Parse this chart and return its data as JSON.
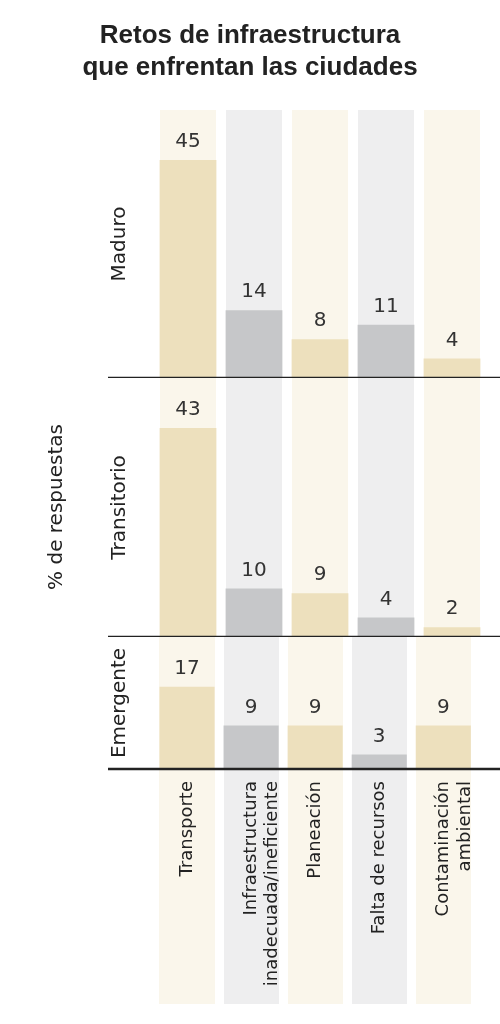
{
  "chart_data": [
    {
      "type": "bar",
      "title": "Retos de infraestructura que enfrentan las ciudades",
      "ylabel": "Maduro",
      "values": [
        45,
        14,
        8,
        11,
        4
      ],
      "colors": [
        "#ede0bd",
        "#c6c7c9",
        "#ede0bd",
        "#c6c7c9",
        "#ede0bd"
      ],
      "data_labels": true,
      "tick_labels": false,
      "legend": false,
      "grid": false
    },
    {
      "type": "bar",
      "ylabel": "Transitorio",
      "annotations": [
        "% de respuestas"
      ],
      "values": [
        43,
        10,
        9,
        4,
        2
      ],
      "colors": [
        "#ede0bd",
        "#c6c7c9",
        "#ede0bd",
        "#c6c7c9",
        "#ede0bd"
      ],
      "data_labels": true,
      "tick_labels": false,
      "legend": false,
      "grid": false
    },
    {
      "type": "bar",
      "ylabel": "Emergente",
      "categories": [
        "Transporte",
        "Infraestructura inadecuada/ineficiente",
        "Planeación",
        "Falta de recursos",
        "Contaminación ambiental"
      ],
      "values": [
        17,
        9,
        9,
        3,
        9
      ],
      "colors": [
        "#ede0bd",
        "#c6c7c9",
        "#ede0bd",
        "#c6c7c9",
        "#ede0bd"
      ],
      "data_labels": true,
      "tick_labels": "x",
      "legend": false,
      "grid": false
    }
  ]
}
